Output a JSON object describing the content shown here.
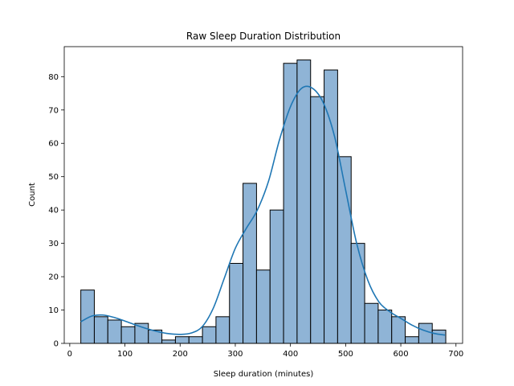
{
  "chart_data": {
    "type": "histogram",
    "title": "Raw Sleep Duration Distribution",
    "xlabel": "Sleep duration (minutes)",
    "ylabel": "Count",
    "xlim": [
      -10,
      712
    ],
    "ylim": [
      0,
      89
    ],
    "xticks": [
      0,
      100,
      200,
      300,
      400,
      500,
      600,
      700
    ],
    "yticks": [
      0,
      10,
      20,
      30,
      40,
      50,
      60,
      70,
      80
    ],
    "bin_start": 20,
    "bin_width": 24.5,
    "counts": [
      16,
      8,
      7,
      5,
      6,
      4,
      1,
      2,
      2,
      5,
      8,
      24,
      48,
      22,
      40,
      84,
      85,
      74,
      82,
      56,
      30,
      12,
      10,
      8,
      2,
      6,
      4
    ],
    "kde": {
      "x": [
        20,
        40,
        60,
        80,
        100,
        120,
        140,
        160,
        180,
        200,
        220,
        240,
        260,
        280,
        300,
        320,
        340,
        360,
        380,
        400,
        420,
        440,
        460,
        480,
        500,
        520,
        540,
        560,
        580,
        600,
        620,
        640,
        660,
        680
      ],
      "y": [
        6.5,
        8.2,
        8.5,
        7.8,
        6.7,
        5.5,
        4.4,
        3.5,
        2.9,
        2.7,
        3.1,
        5.0,
        10.5,
        19.5,
        28.5,
        34.5,
        40.0,
        48.5,
        61.0,
        71.0,
        76.5,
        76.5,
        72.0,
        62.0,
        46.0,
        30.0,
        19.0,
        12.5,
        9.5,
        7.5,
        5.5,
        4.0,
        3.0,
        2.5
      ]
    },
    "bar_color": "#8fb4d6",
    "bar_edge_color": "#000000",
    "kde_color": "#1f77b4",
    "grid": false,
    "legend": "none"
  }
}
